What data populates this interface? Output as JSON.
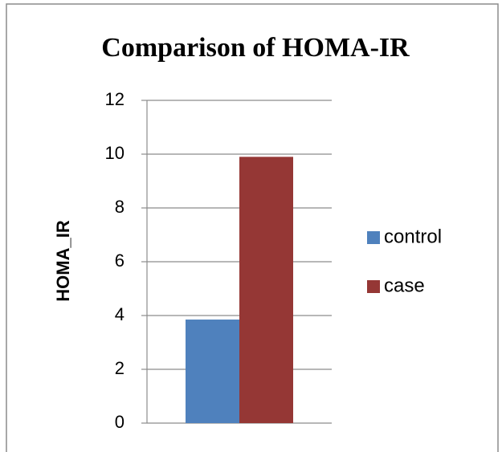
{
  "chart_data": {
    "type": "bar",
    "title": "Comparison of HOMA-IR",
    "y_label": "HOMA_IR",
    "categories": [
      null
    ],
    "series": [
      {
        "name": "control",
        "color": "#4f81bd",
        "values": [
          3.85
        ]
      },
      {
        "name": "case",
        "color": "#953735",
        "values": [
          9.9
        ]
      }
    ],
    "ylim": [
      0,
      12
    ],
    "yticks": [
      0,
      2,
      4,
      6,
      8,
      10,
      12
    ],
    "grid": true,
    "legend": "right"
  }
}
